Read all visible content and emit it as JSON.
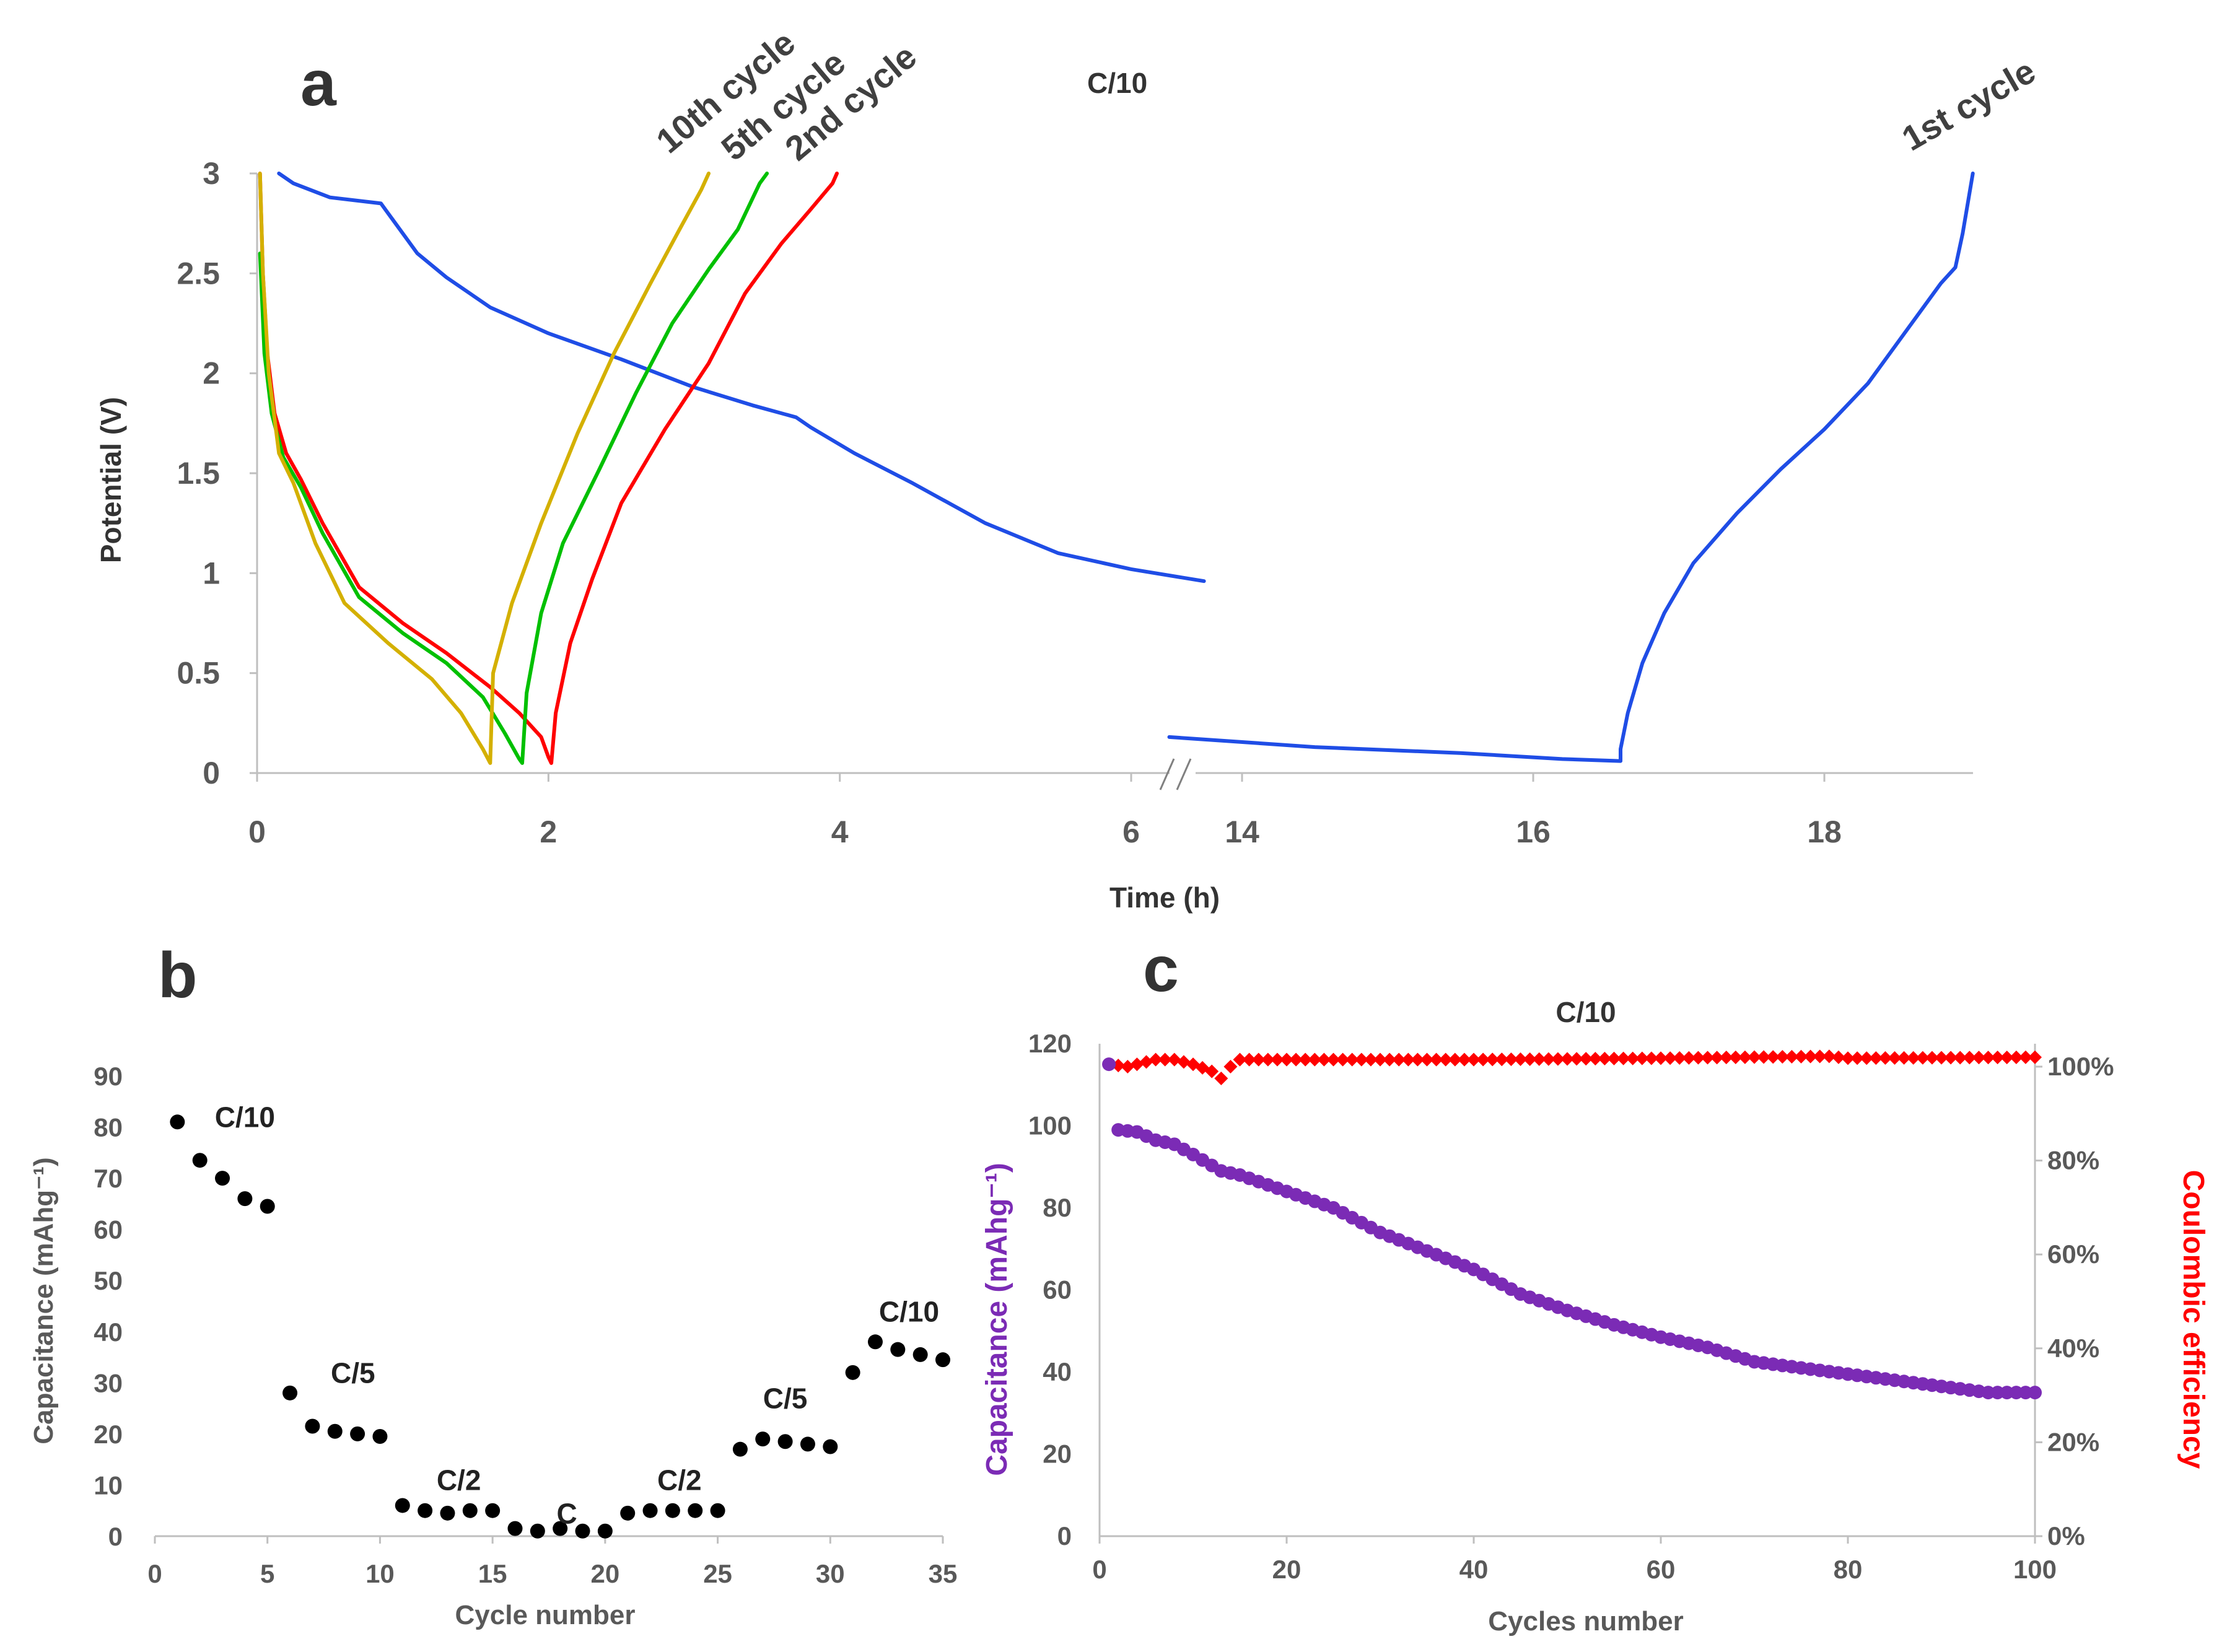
{
  "panels": {
    "a": {
      "letter": "a",
      "rate_label": "C/10"
    },
    "b": {
      "letter": "b"
    },
    "c": {
      "letter": "c",
      "rate_label": "C/10"
    }
  },
  "colors": {
    "first": "#1f4de6",
    "second": "#ff0000",
    "fifth": "#00c000",
    "tenth": "#d4b000",
    "axis": "#bfbfbf",
    "tick_text": "#595959",
    "capacity_c": "#7b2bb5",
    "ce_c": "#ff0000",
    "dots_b": "#000000"
  },
  "chart_data": [
    {
      "id": "a",
      "type": "line",
      "title": "C/10",
      "xlabel": "Time (h)",
      "ylabel": "Potential (V)",
      "ylim": [
        0,
        3
      ],
      "yticks": [
        "0",
        "0.5",
        "1",
        "1.5",
        "2",
        "2.5",
        "3"
      ],
      "xbreak": [
        6.5,
        13.5
      ],
      "xticks_left": [
        "0",
        "2",
        "4",
        "6"
      ],
      "xticks_right": [
        "14",
        "16",
        "18"
      ],
      "series": [
        {
          "name": "1st cycle",
          "label": "1st cycle",
          "color": "#1f4de6",
          "points": [
            [
              0.15,
              3.0
            ],
            [
              0.25,
              2.95
            ],
            [
              0.5,
              2.88
            ],
            [
              0.85,
              2.85
            ],
            [
              0.9,
              2.8
            ],
            [
              1.1,
              2.6
            ],
            [
              1.3,
              2.48
            ],
            [
              1.6,
              2.33
            ],
            [
              2.0,
              2.2
            ],
            [
              2.5,
              2.07
            ],
            [
              3.0,
              1.93
            ],
            [
              3.4,
              1.84
            ],
            [
              3.7,
              1.78
            ],
            [
              3.8,
              1.73
            ],
            [
              4.1,
              1.6
            ],
            [
              4.5,
              1.45
            ],
            [
              5.0,
              1.25
            ],
            [
              5.5,
              1.1
            ],
            [
              6.0,
              1.02
            ],
            [
              6.5,
              0.96
            ],
            [
              13.5,
              0.18
            ],
            [
              14.5,
              0.13
            ],
            [
              15.5,
              0.1
            ],
            [
              16.2,
              0.07
            ],
            [
              16.6,
              0.06
            ],
            [
              16.6,
              0.12
            ],
            [
              16.65,
              0.3
            ],
            [
              16.75,
              0.55
            ],
            [
              16.9,
              0.8
            ],
            [
              17.1,
              1.05
            ],
            [
              17.4,
              1.3
            ],
            [
              17.7,
              1.52
            ],
            [
              18.0,
              1.72
            ],
            [
              18.3,
              1.95
            ],
            [
              18.6,
              2.25
            ],
            [
              18.8,
              2.45
            ],
            [
              18.9,
              2.53
            ],
            [
              18.95,
              2.7
            ],
            [
              19.02,
              3.0
            ]
          ]
        },
        {
          "name": "2nd cycle",
          "label": "2nd cycle",
          "color": "#ff0000",
          "points": [
            [
              0.02,
              3.0
            ],
            [
              0.04,
              2.5
            ],
            [
              0.07,
              2.1
            ],
            [
              0.12,
              1.8
            ],
            [
              0.2,
              1.6
            ],
            [
              0.3,
              1.47
            ],
            [
              0.45,
              1.25
            ],
            [
              0.7,
              0.93
            ],
            [
              1.0,
              0.75
            ],
            [
              1.3,
              0.6
            ],
            [
              1.6,
              0.43
            ],
            [
              1.8,
              0.3
            ],
            [
              1.95,
              0.18
            ],
            [
              2.0,
              0.08
            ],
            [
              2.02,
              0.05
            ],
            [
              2.05,
              0.3
            ],
            [
              2.15,
              0.65
            ],
            [
              2.3,
              0.97
            ],
            [
              2.5,
              1.35
            ],
            [
              2.8,
              1.72
            ],
            [
              3.1,
              2.05
            ],
            [
              3.35,
              2.4
            ],
            [
              3.6,
              2.65
            ],
            [
              3.8,
              2.82
            ],
            [
              3.95,
              2.95
            ],
            [
              3.98,
              3.0
            ]
          ]
        },
        {
          "name": "5th cycle",
          "label": "5th cycle",
          "color": "#00c000",
          "points": [
            [
              0.02,
              2.6
            ],
            [
              0.05,
              2.1
            ],
            [
              0.1,
              1.8
            ],
            [
              0.18,
              1.58
            ],
            [
              0.3,
              1.43
            ],
            [
              0.45,
              1.2
            ],
            [
              0.7,
              0.88
            ],
            [
              1.0,
              0.7
            ],
            [
              1.3,
              0.55
            ],
            [
              1.55,
              0.38
            ],
            [
              1.7,
              0.2
            ],
            [
              1.8,
              0.07
            ],
            [
              1.82,
              0.05
            ],
            [
              1.85,
              0.4
            ],
            [
              1.95,
              0.8
            ],
            [
              2.1,
              1.15
            ],
            [
              2.35,
              1.52
            ],
            [
              2.6,
              1.9
            ],
            [
              2.85,
              2.25
            ],
            [
              3.1,
              2.52
            ],
            [
              3.3,
              2.72
            ],
            [
              3.45,
              2.95
            ],
            [
              3.5,
              3.0
            ]
          ]
        },
        {
          "name": "10th cycle",
          "label": "10th cycle",
          "color": "#d4b000",
          "points": [
            [
              0.02,
              3.0
            ],
            [
              0.04,
              2.5
            ],
            [
              0.08,
              2.0
            ],
            [
              0.15,
              1.6
            ],
            [
              0.25,
              1.45
            ],
            [
              0.4,
              1.15
            ],
            [
              0.6,
              0.85
            ],
            [
              0.9,
              0.65
            ],
            [
              1.2,
              0.47
            ],
            [
              1.4,
              0.3
            ],
            [
              1.55,
              0.12
            ],
            [
              1.6,
              0.05
            ],
            [
              1.62,
              0.5
            ],
            [
              1.75,
              0.85
            ],
            [
              1.95,
              1.25
            ],
            [
              2.2,
              1.7
            ],
            [
              2.45,
              2.1
            ],
            [
              2.7,
              2.45
            ],
            [
              2.9,
              2.72
            ],
            [
              3.05,
              2.92
            ],
            [
              3.1,
              3.0
            ]
          ]
        }
      ]
    },
    {
      "id": "b",
      "type": "scatter",
      "xlabel": "Cycle number",
      "ylabel": "Capacitance (mAhg⁻¹)",
      "xlim": [
        0,
        35
      ],
      "ylim": [
        0,
        90
      ],
      "xticks": [
        "0",
        "5",
        "10",
        "15",
        "20",
        "25",
        "30",
        "35"
      ],
      "yticks": [
        "0",
        "10",
        "20",
        "30",
        "40",
        "50",
        "60",
        "70",
        "80",
        "90"
      ],
      "x": [
        1,
        2,
        3,
        4,
        5,
        6,
        7,
        8,
        9,
        10,
        11,
        12,
        13,
        14,
        15,
        16,
        17,
        18,
        19,
        20,
        21,
        22,
        23,
        24,
        25,
        26,
        27,
        28,
        29,
        30,
        31,
        32,
        33,
        34,
        35
      ],
      "values": [
        81,
        73.5,
        70,
        66,
        64.5,
        28,
        21.5,
        20.5,
        20,
        19.5,
        6,
        5,
        4.5,
        5,
        5,
        1.5,
        1,
        1.5,
        1,
        1,
        4.5,
        5,
        5,
        5,
        5,
        17,
        19,
        18.5,
        18,
        17.5,
        32,
        38,
        36.5,
        35.5,
        34.5
      ],
      "rate_labels": [
        {
          "text": "C/10",
          "x": 4.0,
          "y": 80
        },
        {
          "text": "C/5",
          "x": 8.8,
          "y": 30
        },
        {
          "text": "C/2",
          "x": 13.5,
          "y": 9
        },
        {
          "text": "C",
          "x": 18.3,
          "y": 2.5
        },
        {
          "text": "C/2",
          "x": 23.3,
          "y": 9
        },
        {
          "text": "C/5",
          "x": 28.0,
          "y": 25
        },
        {
          "text": "C/10",
          "x": 33.5,
          "y": 42
        }
      ]
    },
    {
      "id": "c",
      "type": "scatter",
      "title": "C/10",
      "xlabel": "Cycles number",
      "ylabel_left": "Capacitance (mAhg⁻¹)",
      "ylabel_right": "Coulombic efficiency",
      "xlim": [
        0,
        100
      ],
      "ylim_left": [
        0,
        120
      ],
      "ylim_right": [
        0,
        100
      ],
      "xticks": [
        "0",
        "20",
        "40",
        "60",
        "80",
        "100"
      ],
      "yticks_left": [
        "0",
        "20",
        "40",
        "60",
        "80",
        "100",
        "120"
      ],
      "yticks_right": [
        "0%",
        "20%",
        "40%",
        "60%",
        "80%",
        "100%"
      ],
      "capacity_keypoints": [
        [
          1,
          115
        ],
        [
          2,
          99
        ],
        [
          4,
          98.5
        ],
        [
          6,
          96.5
        ],
        [
          8,
          95.5
        ],
        [
          10,
          93
        ],
        [
          13,
          89
        ],
        [
          15,
          88
        ],
        [
          20,
          84
        ],
        [
          25,
          80
        ],
        [
          30,
          74
        ],
        [
          35,
          69.5
        ],
        [
          40,
          65
        ],
        [
          45,
          59
        ],
        [
          50,
          55
        ],
        [
          55,
          51.5
        ],
        [
          60,
          48.5
        ],
        [
          65,
          46
        ],
        [
          70,
          42.5
        ],
        [
          75,
          41
        ],
        [
          80,
          39.5
        ],
        [
          85,
          38
        ],
        [
          90,
          36.5
        ],
        [
          95,
          35
        ],
        [
          100,
          35
        ]
      ],
      "efficiency_keypoints": [
        [
          1,
          100.5
        ],
        [
          3,
          100
        ],
        [
          6,
          101.5
        ],
        [
          8,
          101.5
        ],
        [
          10,
          100.5
        ],
        [
          12,
          99
        ],
        [
          13,
          97.5
        ],
        [
          14,
          100
        ],
        [
          15,
          101.5
        ],
        [
          20,
          101.5
        ],
        [
          40,
          101.5
        ],
        [
          60,
          101.8
        ],
        [
          78,
          102.2
        ],
        [
          80,
          101.8
        ],
        [
          100,
          102
        ]
      ]
    }
  ]
}
